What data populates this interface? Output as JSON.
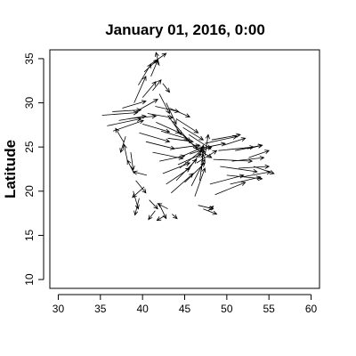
{
  "chart_data": {
    "type": "vector-field",
    "title": "January 01, 2016, 0:00",
    "xlabel": "",
    "ylabel": "Latitude",
    "xlim": [
      29,
      61
    ],
    "ylim": [
      9,
      36
    ],
    "xticks": [
      30,
      35,
      40,
      45,
      50,
      55,
      60
    ],
    "yticks": [
      10,
      15,
      20,
      25,
      30,
      35
    ],
    "grid": false,
    "legend": "none",
    "vectors": [
      {
        "x": 35.2,
        "y": 28.6,
        "u": 4.2,
        "v": 0.3
      },
      {
        "x": 35.8,
        "y": 27.4,
        "u": 4.0,
        "v": 0.8
      },
      {
        "x": 36.5,
        "y": 26.8,
        "u": 3.6,
        "v": 1.2
      },
      {
        "x": 37.2,
        "y": 28.0,
        "u": 3.2,
        "v": 0.5
      },
      {
        "x": 37.8,
        "y": 25.5,
        "u": -1.0,
        "v": 1.6
      },
      {
        "x": 38.2,
        "y": 23.5,
        "u": -0.4,
        "v": 1.8
      },
      {
        "x": 38.6,
        "y": 24.4,
        "u": 0.3,
        "v": -2.0
      },
      {
        "x": 38.0,
        "y": 26.2,
        "u": -0.6,
        "v": -1.8
      },
      {
        "x": 39.0,
        "y": 22.0,
        "u": -0.8,
        "v": 1.5
      },
      {
        "x": 39.2,
        "y": 21.2,
        "u": 1.2,
        "v": -1.4
      },
      {
        "x": 38.9,
        "y": 20.0,
        "u": 0.6,
        "v": -2.0
      },
      {
        "x": 39.6,
        "y": 19.2,
        "u": -0.5,
        "v": -1.9
      },
      {
        "x": 40.2,
        "y": 20.5,
        "u": -1.4,
        "v": -1.2
      },
      {
        "x": 40.5,
        "y": 21.8,
        "u": -1.6,
        "v": 0.4
      },
      {
        "x": 40.8,
        "y": 19.0,
        "u": 1.0,
        "v": -1.0
      },
      {
        "x": 41.5,
        "y": 17.8,
        "u": -0.8,
        "v": -1.0
      },
      {
        "x": 42.0,
        "y": 18.5,
        "u": 0.8,
        "v": -1.6
      },
      {
        "x": 42.6,
        "y": 17.2,
        "u": -0.9,
        "v": -0.5
      },
      {
        "x": 43.0,
        "y": 18.0,
        "u": -1.2,
        "v": 0.6
      },
      {
        "x": 43.5,
        "y": 17.4,
        "u": 0.6,
        "v": -0.5
      },
      {
        "x": 39.0,
        "y": 30.0,
        "u": 1.4,
        "v": 3.0
      },
      {
        "x": 39.5,
        "y": 32.0,
        "u": 1.5,
        "v": 2.4
      },
      {
        "x": 40.2,
        "y": 33.5,
        "u": 1.6,
        "v": 1.4
      },
      {
        "x": 41.0,
        "y": 34.4,
        "u": 1.8,
        "v": 1.2
      },
      {
        "x": 42.0,
        "y": 34.2,
        "u": -0.4,
        "v": 1.5
      },
      {
        "x": 41.0,
        "y": 33.0,
        "u": 0.8,
        "v": 1.8
      },
      {
        "x": 40.0,
        "y": 30.6,
        "u": 1.6,
        "v": 1.8
      },
      {
        "x": 41.2,
        "y": 31.4,
        "u": 1.0,
        "v": 1.2
      },
      {
        "x": 42.4,
        "y": 32.2,
        "u": 0.8,
        "v": -1.0
      },
      {
        "x": 42.0,
        "y": 31.0,
        "u": 1.2,
        "v": -2.2
      },
      {
        "x": 42.8,
        "y": 30.0,
        "u": 1.2,
        "v": -2.4
      },
      {
        "x": 43.0,
        "y": 28.6,
        "u": 1.6,
        "v": -2.2
      },
      {
        "x": 43.8,
        "y": 27.6,
        "u": 1.8,
        "v": -2.0
      },
      {
        "x": 44.5,
        "y": 26.6,
        "u": 2.0,
        "v": -1.8
      },
      {
        "x": 45.2,
        "y": 25.8,
        "u": 2.2,
        "v": -1.4
      },
      {
        "x": 46.0,
        "y": 25.0,
        "u": 2.2,
        "v": -1.2
      },
      {
        "x": 43.2,
        "y": 29.4,
        "u": 2.4,
        "v": -1.0
      },
      {
        "x": 44.0,
        "y": 28.2,
        "u": 2.6,
        "v": -1.6
      },
      {
        "x": 44.8,
        "y": 27.2,
        "u": 2.4,
        "v": -1.4
      },
      {
        "x": 45.5,
        "y": 26.4,
        "u": 2.6,
        "v": -1.6
      },
      {
        "x": 41.5,
        "y": 29.6,
        "u": 2.8,
        "v": -0.6
      },
      {
        "x": 40.6,
        "y": 28.8,
        "u": 3.0,
        "v": -0.5
      },
      {
        "x": 40.0,
        "y": 27.6,
        "u": 3.2,
        "v": -0.9
      },
      {
        "x": 39.6,
        "y": 26.6,
        "u": 3.6,
        "v": -1.0
      },
      {
        "x": 40.4,
        "y": 25.6,
        "u": 3.4,
        "v": -0.8
      },
      {
        "x": 41.2,
        "y": 24.4,
        "u": 3.6,
        "v": -0.7
      },
      {
        "x": 42.0,
        "y": 23.4,
        "u": 3.0,
        "v": 0.6
      },
      {
        "x": 42.4,
        "y": 22.0,
        "u": 3.2,
        "v": 1.2
      },
      {
        "x": 42.8,
        "y": 20.8,
        "u": 2.8,
        "v": 1.8
      },
      {
        "x": 43.4,
        "y": 19.8,
        "u": 2.6,
        "v": 2.2
      },
      {
        "x": 44.0,
        "y": 21.2,
        "u": 2.4,
        "v": 2.4
      },
      {
        "x": 44.4,
        "y": 22.6,
        "u": 2.6,
        "v": 2.0
      },
      {
        "x": 44.8,
        "y": 24.0,
        "u": 2.4,
        "v": 1.0
      },
      {
        "x": 45.4,
        "y": 22.4,
        "u": 1.8,
        "v": 2.4
      },
      {
        "x": 45.8,
        "y": 20.6,
        "u": 1.6,
        "v": 3.0
      },
      {
        "x": 46.2,
        "y": 19.4,
        "u": 1.2,
        "v": 3.2
      },
      {
        "x": 46.6,
        "y": 18.4,
        "u": 1.8,
        "v": -0.4
      },
      {
        "x": 47.2,
        "y": 18.0,
        "u": 1.6,
        "v": -0.6
      },
      {
        "x": 47.8,
        "y": 17.8,
        "u": 0.6,
        "v": 0.5
      },
      {
        "x": 46.8,
        "y": 21.2,
        "u": 0.4,
        "v": 3.0
      },
      {
        "x": 47.0,
        "y": 22.4,
        "u": 0.2,
        "v": 2.8
      },
      {
        "x": 47.4,
        "y": 24.0,
        "u": 0.4,
        "v": 2.4
      },
      {
        "x": 46.6,
        "y": 24.8,
        "u": 3.2,
        "v": 0.6
      },
      {
        "x": 47.4,
        "y": 25.4,
        "u": 3.8,
        "v": 0.8
      },
      {
        "x": 48.2,
        "y": 25.8,
        "u": 3.4,
        "v": 0.6
      },
      {
        "x": 49.0,
        "y": 24.6,
        "u": 4.2,
        "v": 0.4
      },
      {
        "x": 48.4,
        "y": 23.6,
        "u": 4.6,
        "v": -0.2
      },
      {
        "x": 49.2,
        "y": 22.8,
        "u": 4.4,
        "v": -0.6
      },
      {
        "x": 50.0,
        "y": 21.8,
        "u": 4.2,
        "v": -0.4
      },
      {
        "x": 50.6,
        "y": 23.4,
        "u": 3.8,
        "v": 0.4
      },
      {
        "x": 51.0,
        "y": 24.6,
        "u": 3.2,
        "v": 0.6
      },
      {
        "x": 48.0,
        "y": 20.8,
        "u": 4.0,
        "v": 1.0
      },
      {
        "x": 48.6,
        "y": 19.6,
        "u": 3.6,
        "v": 1.4
      },
      {
        "x": 51.4,
        "y": 22.6,
        "u": 3.6,
        "v": 0.2
      },
      {
        "x": 51.8,
        "y": 21.6,
        "u": 3.4,
        "v": 0.6
      },
      {
        "x": 52.6,
        "y": 23.8,
        "u": 2.4,
        "v": 0.8
      },
      {
        "x": 53.2,
        "y": 22.8,
        "u": 2.4,
        "v": -0.8
      },
      {
        "x": 52.4,
        "y": 24.8,
        "u": 1.8,
        "v": 0.4
      },
      {
        "x": 43.6,
        "y": 24.8,
        "u": 3.2,
        "v": 0.4
      },
      {
        "x": 43.0,
        "y": 26.0,
        "u": 3.0,
        "v": -0.4
      },
      {
        "x": 42.2,
        "y": 26.8,
        "u": 3.2,
        "v": -0.9
      },
      {
        "x": 41.6,
        "y": 27.8,
        "u": 2.8,
        "v": -1.2
      },
      {
        "x": 44.2,
        "y": 23.0,
        "u": 2.8,
        "v": 1.2
      },
      {
        "x": 45.0,
        "y": 21.0,
        "u": 2.4,
        "v": 2.2
      },
      {
        "x": 36.4,
        "y": 29.0,
        "u": 3.4,
        "v": 0.2
      },
      {
        "x": 37.6,
        "y": 29.4,
        "u": 2.8,
        "v": 0.8
      },
      {
        "x": 38.4,
        "y": 28.2,
        "u": 3.2,
        "v": 0.3
      },
      {
        "x": 39.2,
        "y": 29.0,
        "u": 2.6,
        "v": 1.4
      },
      {
        "x": 45.6,
        "y": 24.2,
        "u": 2.6,
        "v": 0.8
      },
      {
        "x": 46.4,
        "y": 23.2,
        "u": 2.4,
        "v": 1.4
      },
      {
        "x": 49.6,
        "y": 25.2,
        "u": 2.6,
        "v": 0.8
      },
      {
        "x": 50.4,
        "y": 20.8,
        "u": 3.6,
        "v": 0.8
      }
    ]
  }
}
